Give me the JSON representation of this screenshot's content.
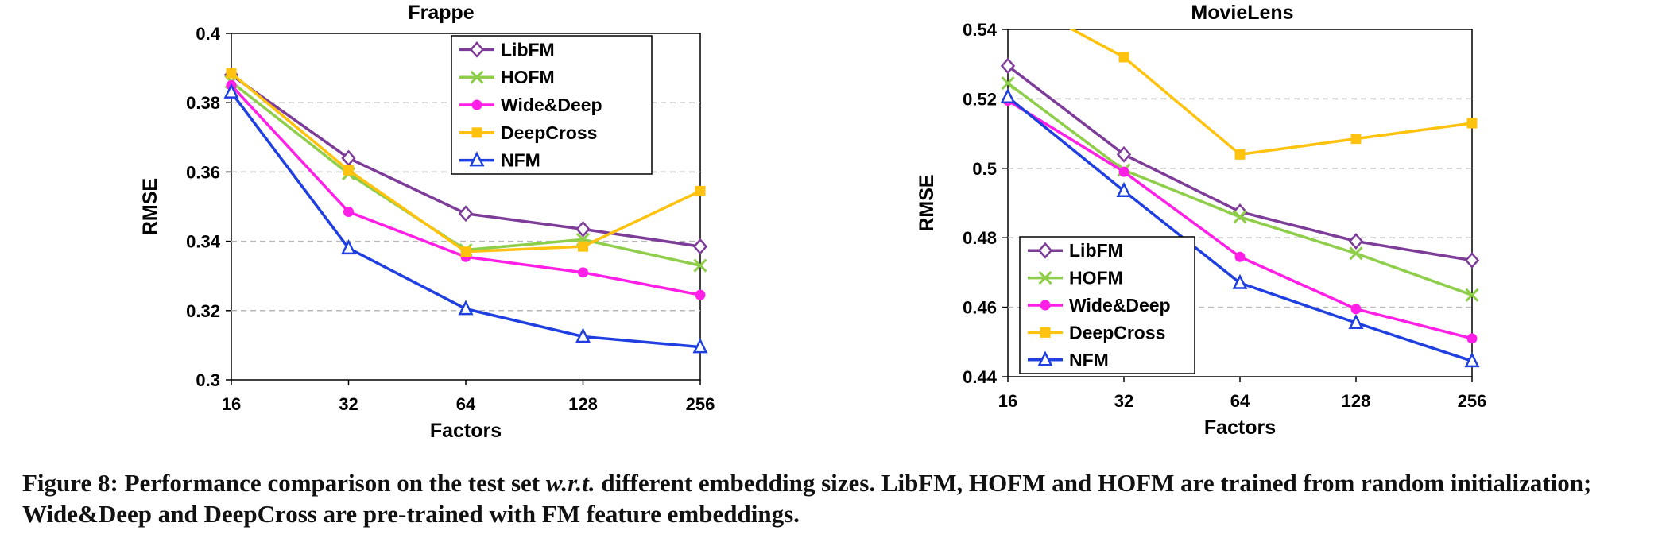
{
  "colors": {
    "LibFM": "#7d3c98",
    "HOFM": "#8fce4a",
    "Wide&Deep": "#ff1fe6",
    "DeepCross": "#ffc20e",
    "NFM": "#1f3fe0"
  },
  "chart_data": [
    {
      "type": "line",
      "title": "Frappe",
      "xlabel": "Factors",
      "ylabel": "RMSE",
      "categories": [
        "16",
        "32",
        "64",
        "128",
        "256"
      ],
      "ylim": [
        0.3,
        0.4
      ],
      "yticks": [
        "0.3",
        "0.32",
        "0.34",
        "0.36",
        "0.38",
        "0.4"
      ],
      "grid": true,
      "legend_position": "top-right",
      "series": [
        {
          "name": "LibFM",
          "marker": "diamond",
          "values": [
            0.388,
            0.364,
            0.348,
            0.3435,
            0.3385
          ]
        },
        {
          "name": "HOFM",
          "marker": "x",
          "values": [
            0.386,
            0.3595,
            0.3375,
            0.3405,
            0.333
          ]
        },
        {
          "name": "Wide&Deep",
          "marker": "circle",
          "values": [
            0.385,
            0.3485,
            0.3355,
            0.331,
            0.3245
          ]
        },
        {
          "name": "DeepCross",
          "marker": "square",
          "values": [
            0.3885,
            0.3605,
            0.337,
            0.3385,
            0.3545
          ]
        },
        {
          "name": "NFM",
          "marker": "triangle",
          "values": [
            0.383,
            0.338,
            0.3205,
            0.3125,
            0.3095
          ]
        }
      ]
    },
    {
      "type": "line",
      "title": "MovieLens",
      "xlabel": "Factors",
      "ylabel": "RMSE",
      "categories": [
        "16",
        "32",
        "64",
        "128",
        "256"
      ],
      "ylim": [
        0.44,
        0.54
      ],
      "yticks": [
        "0.44",
        "0.46",
        "0.48",
        "0.5",
        "0.52",
        "0.54"
      ],
      "grid": true,
      "legend_position": "bottom-left",
      "series": [
        {
          "name": "LibFM",
          "marker": "diamond",
          "values": [
            0.5295,
            0.504,
            0.4875,
            0.479,
            0.4735
          ]
        },
        {
          "name": "HOFM",
          "marker": "x",
          "values": [
            0.5245,
            0.4995,
            0.486,
            0.4755,
            0.4635
          ]
        },
        {
          "name": "Wide&Deep",
          "marker": "circle",
          "values": [
            0.5195,
            0.499,
            0.4745,
            0.4595,
            0.451
          ]
        },
        {
          "name": "DeepCross",
          "marker": "square",
          "values": [
            0.55,
            0.532,
            0.504,
            0.5085,
            0.513
          ]
        },
        {
          "name": "NFM",
          "marker": "triangle",
          "values": [
            0.5205,
            0.4935,
            0.467,
            0.4555,
            0.4445
          ]
        }
      ]
    }
  ],
  "caption": {
    "prefix": "Figure 8: Performance comparison on the test set ",
    "emph": "w.r.t.",
    "suffix": " different embedding sizes. LibFM, HOFM and HOFM are trained from random initialization; Wide&Deep and DeepCross are pre-trained with FM feature embeddings."
  }
}
